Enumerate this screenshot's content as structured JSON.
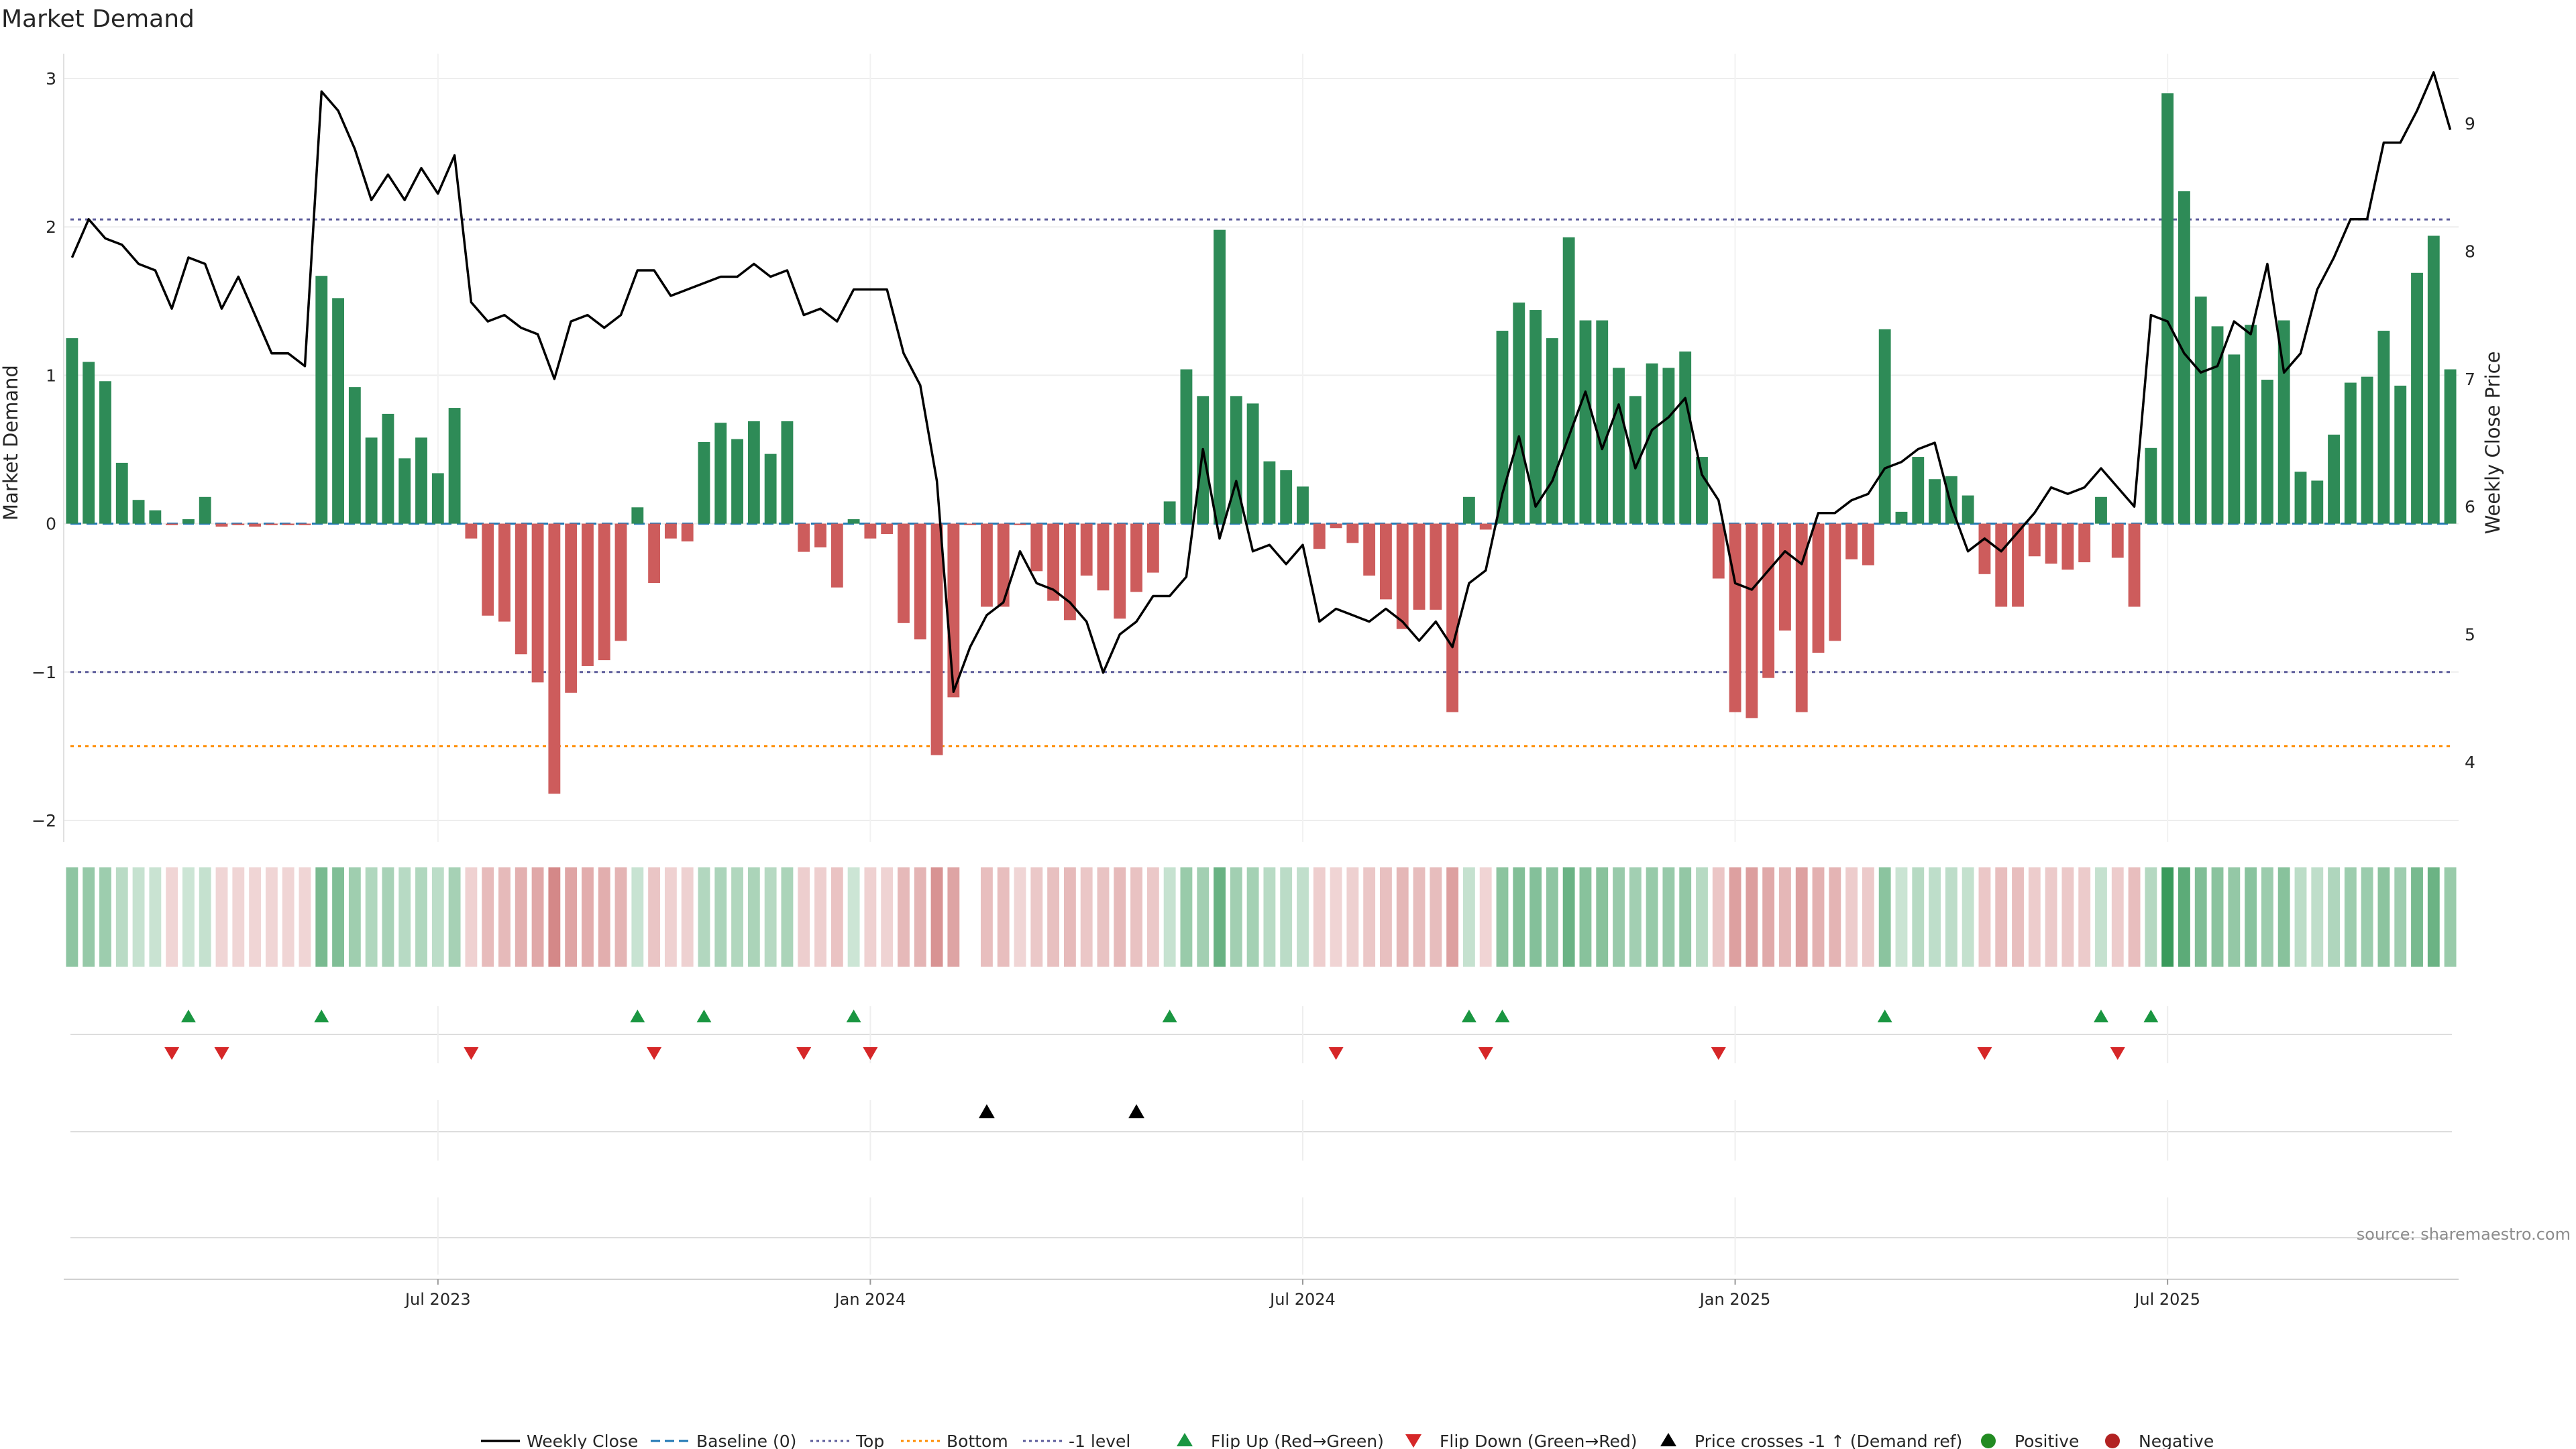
{
  "chart_data": {
    "type": "bar",
    "title": "Market Demand",
    "ylabel": "Market Demand",
    "y2label": "Weekly Close Price",
    "ylim": [
      -2.2,
      3.1
    ],
    "y2lim": [
      3.55,
      9.35
    ],
    "yticks": [
      {
        "v": 3,
        "label": "3"
      },
      {
        "v": 2,
        "label": "2"
      },
      {
        "v": 1,
        "label": "1"
      },
      {
        "v": 0,
        "label": "0"
      },
      {
        "v": -1,
        "label": "−1"
      },
      {
        "v": -2,
        "label": "−2"
      }
    ],
    "y2ticks": [
      {
        "v": 9,
        "label": "9"
      },
      {
        "v": 8,
        "label": "8"
      },
      {
        "v": 7,
        "label": "7"
      },
      {
        "v": 6,
        "label": "6"
      },
      {
        "v": 5,
        "label": "5"
      },
      {
        "v": 4,
        "label": "4"
      }
    ],
    "xticks": [
      {
        "week": 22,
        "label": "Jul 2023"
      },
      {
        "week": 48,
        "label": "Jan 2024"
      },
      {
        "week": 74,
        "label": "Jul 2024"
      },
      {
        "week": 100,
        "label": "Jan 2025"
      },
      {
        "week": 126,
        "label": "Jul 2025"
      }
    ],
    "reference_lines": {
      "top": 2.05,
      "minus_one": -1.0,
      "bottom": -1.5
    },
    "demand": [
      1.25,
      1.09,
      0.96,
      0.41,
      0.16,
      0.09,
      -0.01,
      0.03,
      0.18,
      -0.02,
      -0.01,
      -0.02,
      -0.01,
      -0.01,
      -0.01,
      1.67,
      1.52,
      0.92,
      0.58,
      0.74,
      0.44,
      0.58,
      0.34,
      0.78,
      -0.1,
      -0.62,
      -0.66,
      -0.88,
      -1.07,
      -1.82,
      -1.14,
      -0.96,
      -0.92,
      -0.79,
      0.11,
      -0.4,
      -0.1,
      -0.12,
      0.55,
      0.68,
      0.57,
      0.69,
      0.47,
      0.69,
      -0.19,
      -0.16,
      -0.43,
      0.03,
      -0.1,
      -0.07,
      -0.67,
      -0.78,
      -1.56,
      -1.17,
      -0.01,
      -0.56,
      -0.56,
      -0.01,
      -0.32,
      -0.52,
      -0.65,
      -0.35,
      -0.45,
      -0.64,
      -0.46,
      -0.33,
      0.15,
      1.04,
      0.86,
      1.98,
      0.86,
      0.81,
      0.42,
      0.36,
      0.25,
      -0.17,
      -0.03,
      -0.13,
      -0.35,
      -0.51,
      -0.71,
      -0.58,
      -0.58,
      -1.27,
      0.18,
      -0.04,
      1.3,
      1.49,
      1.44,
      1.25,
      1.93,
      1.37,
      1.37,
      1.05,
      0.86,
      1.08,
      1.05,
      1.16,
      0.45,
      -0.37,
      -1.27,
      -1.31,
      -1.04,
      -0.72,
      -1.27,
      -0.87,
      -0.79,
      -0.24,
      -0.28,
      1.31,
      0.08,
      0.45,
      0.3,
      0.32,
      0.19,
      -0.34,
      -0.56,
      -0.56,
      -0.22,
      -0.27,
      -0.31,
      -0.26,
      0.18,
      -0.23,
      -0.56,
      0.51,
      2.9,
      2.24,
      1.53,
      1.33,
      1.14,
      1.34,
      0.97,
      1.37,
      0.35,
      0.29,
      0.6,
      0.95,
      0.99,
      1.3,
      0.93,
      1.69,
      1.94,
      1.04
    ],
    "close": [
      7.95,
      8.25,
      8.1,
      8.05,
      7.9,
      7.85,
      7.55,
      7.95,
      7.9,
      7.55,
      7.8,
      7.5,
      7.2,
      7.2,
      7.1,
      9.25,
      9.1,
      8.8,
      8.4,
      8.6,
      8.4,
      8.65,
      8.45,
      8.75,
      7.6,
      7.45,
      7.5,
      7.4,
      7.35,
      7.0,
      7.45,
      7.5,
      7.4,
      7.5,
      7.85,
      7.85,
      7.65,
      7.7,
      7.75,
      7.8,
      7.8,
      7.9,
      7.8,
      7.85,
      7.5,
      7.55,
      7.45,
      7.7,
      7.7,
      7.7,
      7.2,
      6.95,
      6.2,
      4.55,
      4.9,
      5.15,
      5.25,
      5.65,
      5.4,
      5.35,
      5.25,
      5.1,
      4.7,
      5.0,
      5.1,
      5.3,
      5.3,
      5.45,
      6.45,
      5.75,
      6.2,
      5.65,
      5.7,
      5.55,
      5.7,
      5.1,
      5.2,
      5.15,
      5.1,
      5.2,
      5.1,
      4.95,
      5.1,
      4.9,
      5.4,
      5.5,
      6.1,
      6.55,
      6.0,
      6.2,
      6.55,
      6.9,
      6.45,
      6.8,
      6.3,
      6.6,
      6.7,
      6.85,
      6.25,
      6.05,
      5.4,
      5.35,
      5.5,
      5.65,
      5.55,
      5.95,
      5.95,
      6.05,
      6.1,
      6.3,
      6.35,
      6.45,
      6.5,
      6.0,
      5.65,
      5.75,
      5.65,
      5.8,
      5.95,
      6.15,
      6.1,
      6.15,
      6.3,
      6.15,
      6.0,
      7.5,
      7.45,
      7.2,
      7.05,
      7.1,
      7.45,
      7.35,
      7.9,
      7.05,
      7.2,
      7.7,
      7.95,
      8.25,
      8.25,
      8.85,
      8.85,
      9.1,
      9.4,
      8.95
    ],
    "flip_up_weeks": [
      7,
      15,
      34,
      38,
      47,
      66,
      84,
      86,
      109,
      122,
      125
    ],
    "flip_down_weeks": [
      6,
      9,
      24,
      35,
      44,
      48,
      76,
      85,
      99,
      115,
      123
    ],
    "price_cross_weeks": [
      55,
      64
    ],
    "strength_row_missing_weeks": [
      54
    ],
    "source": "source: sharemaestro.com",
    "legend": [
      "Weekly Close",
      "Baseline (0)",
      "Top",
      "Bottom",
      "-1 level",
      "Flip Up (Red→Green)",
      "Flip Down (Green→Red)",
      "Price crosses -1 ↑ (Demand ref)",
      "Positive",
      "Negative"
    ],
    "colors": {
      "positive": "#2e8b57",
      "negative": "#cd5c5c",
      "close": "#000000",
      "baseline": "#1f77b4",
      "top_line": "#5b5b9a",
      "minus_one_line": "#5b5b9a",
      "bottom_line": "#ff8c00",
      "flip_up": "#1a9641",
      "flip_down": "#d62728",
      "cross": "#000000",
      "legend_positive": "#228b22",
      "legend_negative": "#b22222"
    }
  }
}
